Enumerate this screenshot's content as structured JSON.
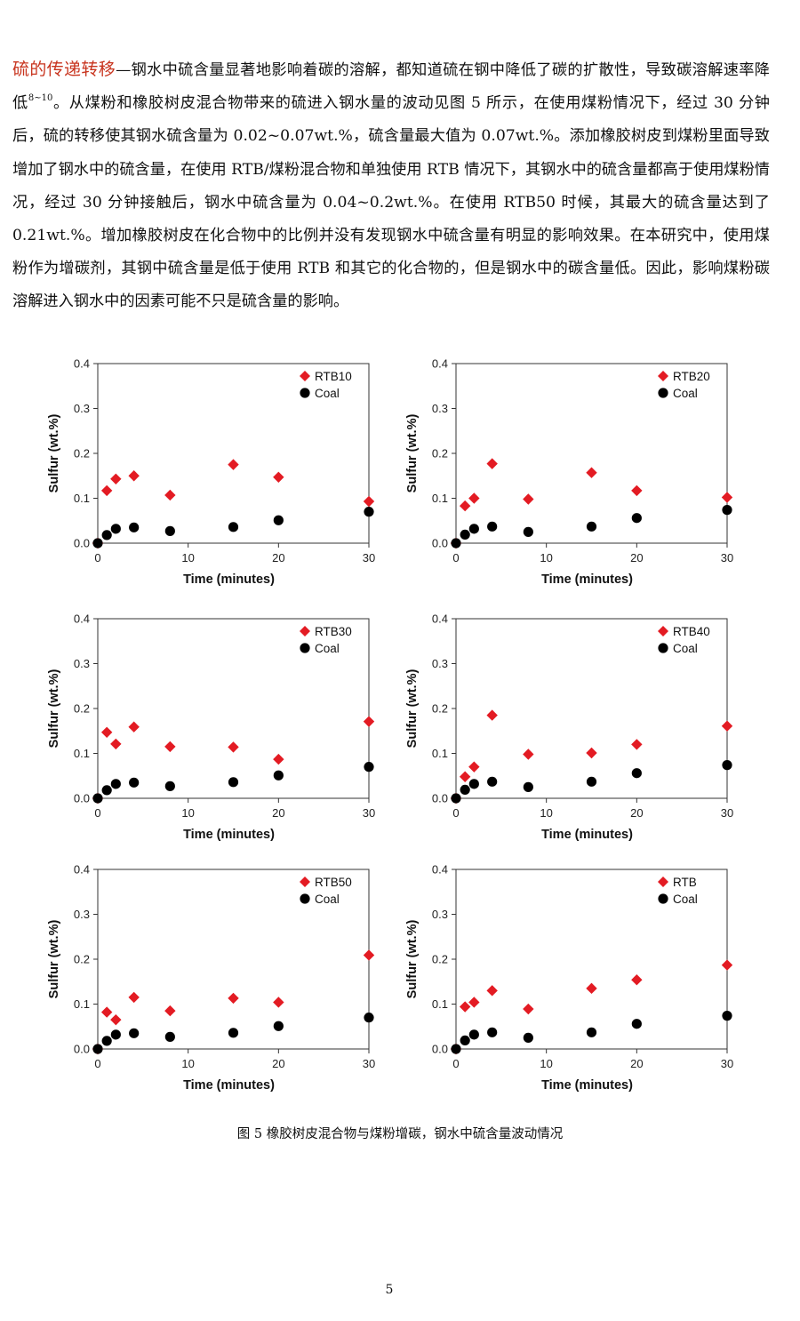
{
  "paragraph": {
    "heading": "硫的传递转移",
    "text_1": "—钢水中硫含量显著地影响着碳的溶解，都知道硫在钢中降低了碳的扩散性，导致碳溶解速率降低",
    "ref": "8~10",
    "text_2": "。从煤粉和橡胶树皮混合物带来的硫进入钢水量的波动见图 5 所示，在使用煤粉情况下，经过 30 分钟后，硫的转移使其钢水硫含量为 0.02~0.07wt.%，硫含量最大值为 0.07wt.%。添加橡胶树皮到煤粉里面导致增加了钢水中的硫含量，在使用 RTB/煤粉混合物和单独使用 RTB 情况下，其钢水中的硫含量都高于使用煤粉情况，经过 30 分钟接触后，钢水中硫含量为 0.04~0.2wt.%。在使用 RTB50 时候，其最大的硫含量达到了 0.21wt.%。增加橡胶树皮在化合物中的比例并没有发现钢水中硫含量有明显的影响效果。在本研究中，使用煤粉作为增碳剂，其钢中硫含量是低于使用 RTB 和其它的化合物的，但是钢水中的碳含量低。因此，影响煤粉碳溶解进入钢水中的因素可能不只是硫含量的影响。"
  },
  "colors": {
    "rtb": "#e31b23",
    "coal": "#000000",
    "heading": "#c8341e"
  },
  "chart_data": [
    {
      "type": "scatter",
      "xlabel": "Time (minutes)",
      "ylabel": "Sulfur (wt.%)",
      "xlim": [
        0,
        30
      ],
      "ylim": [
        0,
        0.4
      ],
      "xticks": [
        "0",
        "10",
        "20",
        "30"
      ],
      "yticks": [
        "0.0",
        "0.1",
        "0.2",
        "0.3",
        "0.4"
      ],
      "legend": "top-right",
      "series": [
        {
          "name": "RTB10",
          "marker": "diamond",
          "x": [
            0,
            1,
            2,
            4,
            8,
            15,
            20,
            30
          ],
          "y": [
            0,
            0.117,
            0.143,
            0.15,
            0.107,
            0.175,
            0.147,
            0.093
          ]
        },
        {
          "name": "Coal",
          "marker": "circle",
          "x": [
            0,
            1,
            2,
            4,
            8,
            15,
            20,
            30
          ],
          "y": [
            0,
            0.018,
            0.032,
            0.035,
            0.027,
            0.036,
            0.051,
            0.07
          ]
        }
      ]
    },
    {
      "type": "scatter",
      "xlabel": "Time (minutes)",
      "ylabel": "Sulfur (wt.%)",
      "xlim": [
        0,
        30
      ],
      "ylim": [
        0,
        0.4
      ],
      "xticks": [
        "0",
        "10",
        "20",
        "30"
      ],
      "yticks": [
        "0.0",
        "0.1",
        "0.2",
        "0.3",
        "0.4"
      ],
      "legend": "top-right",
      "series": [
        {
          "name": "RTB20",
          "marker": "diamond",
          "x": [
            0,
            1,
            2,
            4,
            8,
            15,
            20,
            30
          ],
          "y": [
            0,
            0.083,
            0.1,
            0.177,
            0.098,
            0.157,
            0.117,
            0.102
          ]
        },
        {
          "name": "Coal",
          "marker": "circle",
          "x": [
            0,
            1,
            2,
            4,
            8,
            15,
            20,
            30
          ],
          "y": [
            0,
            0.019,
            0.032,
            0.037,
            0.025,
            0.037,
            0.056,
            0.074
          ]
        }
      ]
    },
    {
      "type": "scatter",
      "xlabel": "Time (minutes)",
      "ylabel": "Sulfur (wt.%)",
      "xlim": [
        0,
        30
      ],
      "ylim": [
        0,
        0.4
      ],
      "xticks": [
        "0",
        "10",
        "20",
        "30"
      ],
      "yticks": [
        "0.0",
        "0.1",
        "0.2",
        "0.3",
        "0.4"
      ],
      "legend": "top-right",
      "series": [
        {
          "name": "RTB30",
          "marker": "diamond",
          "x": [
            0,
            1,
            2,
            4,
            8,
            15,
            20,
            30
          ],
          "y": [
            0,
            0.147,
            0.121,
            0.159,
            0.115,
            0.114,
            0.087,
            0.171
          ]
        },
        {
          "name": "Coal",
          "marker": "circle",
          "x": [
            0,
            1,
            2,
            4,
            8,
            15,
            20,
            30
          ],
          "y": [
            0,
            0.018,
            0.032,
            0.035,
            0.027,
            0.036,
            0.051,
            0.07
          ]
        }
      ]
    },
    {
      "type": "scatter",
      "xlabel": "Time (minutes)",
      "ylabel": "Sulfur (wt.%)",
      "xlim": [
        0,
        30
      ],
      "ylim": [
        0,
        0.4
      ],
      "xticks": [
        "0",
        "10",
        "20",
        "30"
      ],
      "yticks": [
        "0.0",
        "0.1",
        "0.2",
        "0.3",
        "0.4"
      ],
      "legend": "top-right",
      "series": [
        {
          "name": "RTB40",
          "marker": "diamond",
          "x": [
            0,
            1,
            2,
            4,
            8,
            15,
            20,
            30
          ],
          "y": [
            0,
            0.048,
            0.07,
            0.185,
            0.098,
            0.101,
            0.12,
            0.161
          ]
        },
        {
          "name": "Coal",
          "marker": "circle",
          "x": [
            0,
            1,
            2,
            4,
            8,
            15,
            20,
            30
          ],
          "y": [
            0,
            0.019,
            0.032,
            0.037,
            0.025,
            0.037,
            0.056,
            0.074
          ]
        }
      ]
    },
    {
      "type": "scatter",
      "xlabel": "Time (minutes)",
      "ylabel": "Sulfur (wt.%)",
      "xlim": [
        0,
        30
      ],
      "ylim": [
        0,
        0.4
      ],
      "xticks": [
        "0",
        "10",
        "20",
        "30"
      ],
      "yticks": [
        "0.0",
        "0.1",
        "0.2",
        "0.3",
        "0.4"
      ],
      "legend": "top-right",
      "series": [
        {
          "name": "RTB50",
          "marker": "diamond",
          "x": [
            0,
            1,
            2,
            4,
            8,
            15,
            20,
            30
          ],
          "y": [
            0,
            0.082,
            0.065,
            0.115,
            0.085,
            0.113,
            0.104,
            0.209
          ]
        },
        {
          "name": "Coal",
          "marker": "circle",
          "x": [
            0,
            1,
            2,
            4,
            8,
            15,
            20,
            30
          ],
          "y": [
            0,
            0.018,
            0.032,
            0.035,
            0.027,
            0.036,
            0.051,
            0.07
          ]
        }
      ]
    },
    {
      "type": "scatter",
      "xlabel": "Time (minutes)",
      "ylabel": "Sulfur (wt.%)",
      "xlim": [
        0,
        30
      ],
      "ylim": [
        0,
        0.4
      ],
      "xticks": [
        "0",
        "10",
        "20",
        "30"
      ],
      "yticks": [
        "0.0",
        "0.1",
        "0.2",
        "0.3",
        "0.4"
      ],
      "legend": "top-right",
      "series": [
        {
          "name": "RTB",
          "marker": "diamond",
          "x": [
            0,
            1,
            2,
            4,
            8,
            15,
            20,
            30
          ],
          "y": [
            0,
            0.094,
            0.104,
            0.13,
            0.089,
            0.135,
            0.154,
            0.187
          ]
        },
        {
          "name": "Coal",
          "marker": "circle",
          "x": [
            0,
            1,
            2,
            4,
            8,
            15,
            20,
            30
          ],
          "y": [
            0,
            0.019,
            0.032,
            0.037,
            0.025,
            0.037,
            0.056,
            0.074
          ]
        }
      ]
    }
  ],
  "caption": "图 5  橡胶树皮混合物与煤粉增碳，钢水中硫含量波动情况",
  "page_number": "5"
}
